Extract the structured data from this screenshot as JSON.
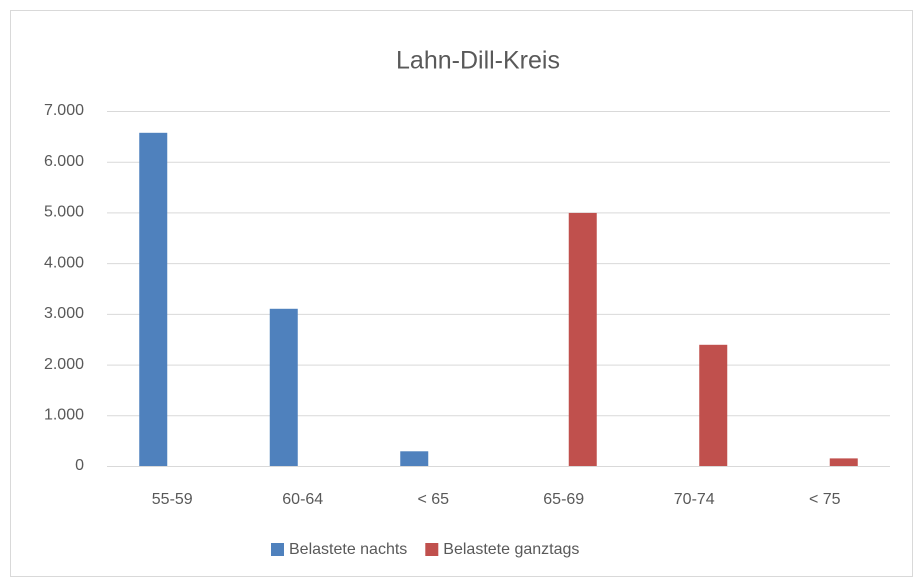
{
  "chart_data": {
    "type": "bar",
    "title": "Lahn-Dill-Kreis",
    "categories": [
      "55-59",
      "60-64",
      "< 65",
      "65-69",
      "70-74",
      "< 75"
    ],
    "series": [
      {
        "name": "Belastete nachts",
        "color": "#4f81bd",
        "values": [
          6570,
          3100,
          290,
          null,
          null,
          null
        ]
      },
      {
        "name": "Belastete ganztags",
        "color": "#c0504d",
        "values": [
          null,
          null,
          null,
          4990,
          2390,
          150
        ]
      }
    ],
    "ylim": [
      0,
      7000
    ],
    "yticks": [
      0,
      {
        "value": 1000,
        "label": "1.000"
      },
      {
        "value": 2000,
        "label": "2.000"
      },
      {
        "value": 3000,
        "label": "3.000"
      },
      {
        "value": 4000,
        "label": "4.000"
      },
      {
        "value": 5000,
        "label": "5.000"
      },
      {
        "value": 6000,
        "label": "6.000"
      },
      {
        "value": 7000,
        "label": "7.000"
      }
    ],
    "grid": true,
    "legend": "bottom"
  }
}
